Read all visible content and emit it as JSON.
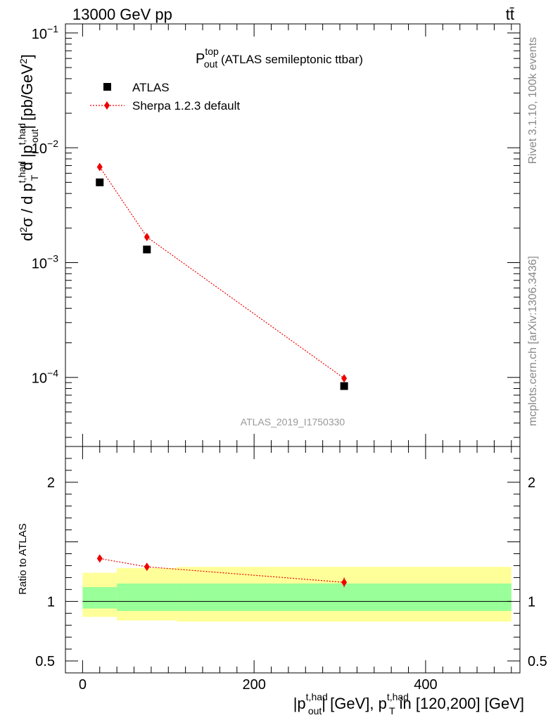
{
  "header": {
    "energy_label": "13000 GeV pp",
    "process_label": "tt̄"
  },
  "side_labels": {
    "rivet": "Rivet 3.1.10,  100k events",
    "source": "mcplots.cern.ch [arXiv:1306.3436]"
  },
  "chart_data": [
    {
      "type": "scatter",
      "title": {
        "main": "P",
        "sup": "top",
        "sub": "out",
        "rest": " (ATLAS semileptonic ttbar)"
      },
      "analysis_id": "ATLAS_2019_I1750330",
      "yscale": "log",
      "xlim": [
        -20,
        510
      ],
      "ylim": [
        2.5e-05,
        0.12
      ],
      "ylabel": "d²σ / d p_T^{t,had} d |p_out^{t,had}| [pb/GeV²]",
      "y_ticks": [
        {
          "value": 0.1,
          "base": "10",
          "exp": "−1"
        },
        {
          "value": 0.01,
          "base": "10",
          "exp": "−2"
        },
        {
          "value": 0.001,
          "base": "10",
          "exp": "−3"
        },
        {
          "value": 0.0001,
          "base": "10",
          "exp": "−4"
        }
      ],
      "legend": {
        "position": "top-left",
        "entries": [
          "ATLAS",
          "Sherpa 1.2.3 default"
        ]
      },
      "series": [
        {
          "name": "ATLAS",
          "marker": "square",
          "color": "#000000",
          "points": [
            {
              "x": 20,
              "y": 0.005
            },
            {
              "x": 75,
              "y": 0.0013
            },
            {
              "x": 305,
              "y": 8.4e-05
            }
          ]
        },
        {
          "name": "Sherpa 1.2.3 default",
          "marker": "diamond",
          "color": "#ee0000",
          "line": "dotted",
          "points": [
            {
              "x": 20,
              "y": 0.0068
            },
            {
              "x": 75,
              "y": 0.00167
            },
            {
              "x": 305,
              "y": 9.8e-05
            }
          ]
        }
      ]
    },
    {
      "type": "line",
      "xlim": [
        -20,
        510
      ],
      "ylim": [
        0.4,
        2.3
      ],
      "ylabel": "Ratio to ATLAS",
      "xlabel": "|p_out^{t,had}| [GeV], p_T^{t,had} in [120,200] [GeV]",
      "x_ticks": [
        "0",
        "200",
        "400"
      ],
      "x_tick_values": [
        0,
        200,
        400
      ],
      "y_ticks": [
        "0.5",
        "1",
        "2"
      ],
      "y_tick_values": [
        0.5,
        1,
        2
      ],
      "bands": [
        {
          "x0": 0,
          "x1": 40,
          "yellow": [
            0.87,
            1.24
          ],
          "green": [
            0.94,
            1.12
          ]
        },
        {
          "x0": 40,
          "x1": 110,
          "yellow": [
            0.84,
            1.28
          ],
          "green": [
            0.92,
            1.15
          ]
        },
        {
          "x0": 110,
          "x1": 500,
          "yellow": [
            0.83,
            1.29
          ],
          "green": [
            0.92,
            1.15
          ]
        }
      ],
      "series": [
        {
          "name": "Sherpa 1.2.3 default",
          "color": "#ee0000",
          "points": [
            {
              "x": 20,
              "y": 1.36,
              "err": 0.02
            },
            {
              "x": 75,
              "y": 1.29,
              "err": 0.02
            },
            {
              "x": 305,
              "y": 1.16,
              "err": 0.04
            }
          ]
        }
      ]
    }
  ]
}
